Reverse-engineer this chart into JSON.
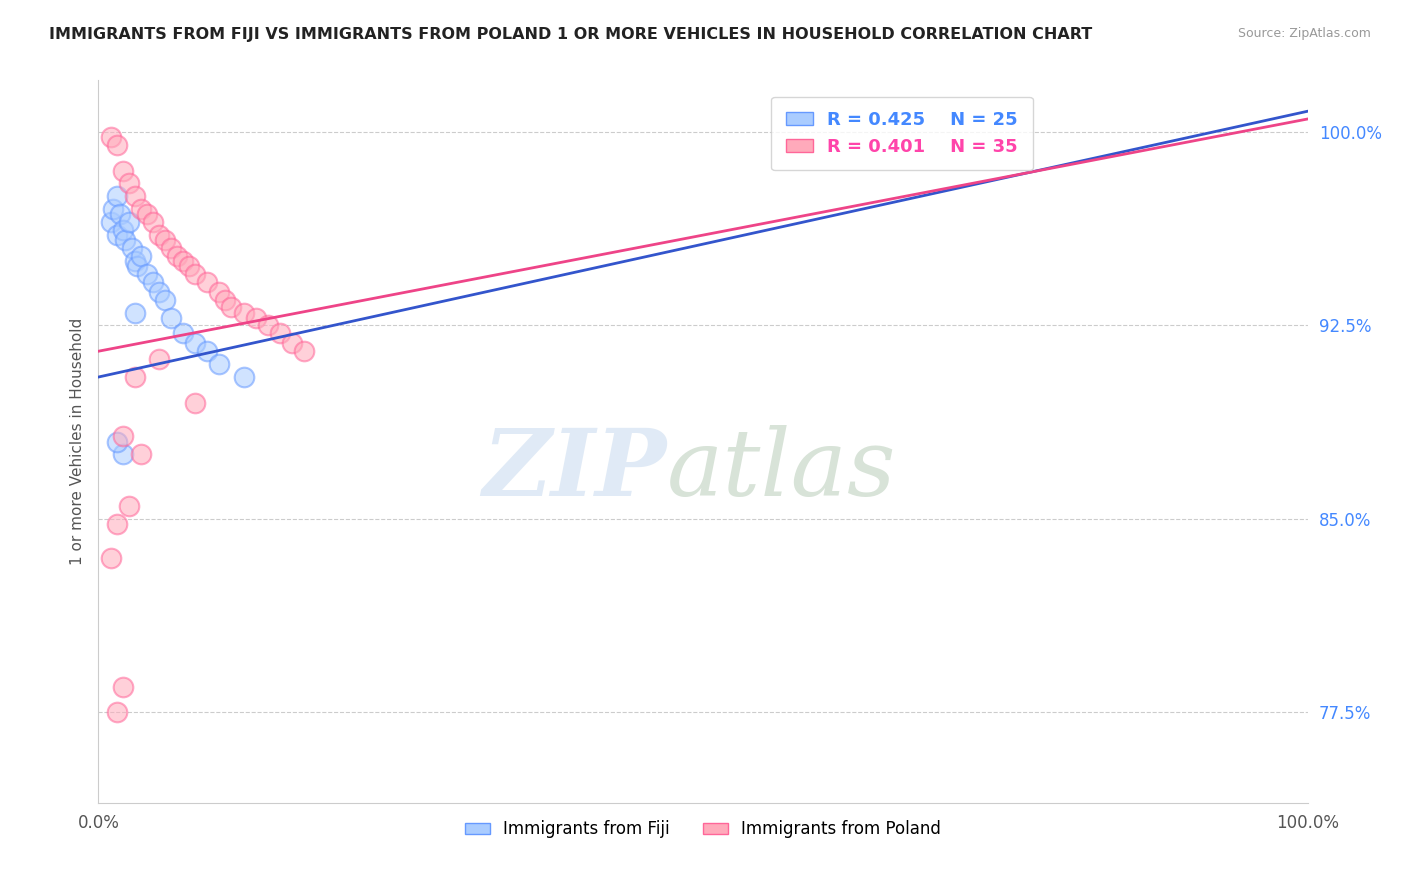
{
  "title": "IMMIGRANTS FROM FIJI VS IMMIGRANTS FROM POLAND 1 OR MORE VEHICLES IN HOUSEHOLD CORRELATION CHART",
  "source": "Source: ZipAtlas.com",
  "ylabel": "1 or more Vehicles in Household",
  "xlim": [
    0,
    100
  ],
  "ylim": [
    74,
    102
  ],
  "yticks": [
    77.5,
    85.0,
    92.5,
    100.0
  ],
  "xticks": [
    0,
    100
  ],
  "xtick_labels": [
    "0.0%",
    "100.0%"
  ],
  "ytick_labels": [
    "77.5%",
    "85.0%",
    "92.5%",
    "100.0%"
  ],
  "fiji_color": "#6699ff",
  "poland_color": "#ff6699",
  "fiji_R": 0.425,
  "fiji_N": 25,
  "poland_R": 0.401,
  "poland_N": 35,
  "fiji_points": [
    [
      1.0,
      96.5
    ],
    [
      1.2,
      97.0
    ],
    [
      1.5,
      97.5
    ],
    [
      1.5,
      96.0
    ],
    [
      1.8,
      96.8
    ],
    [
      2.0,
      96.2
    ],
    [
      2.2,
      95.8
    ],
    [
      2.5,
      96.5
    ],
    [
      2.8,
      95.5
    ],
    [
      3.0,
      95.0
    ],
    [
      3.2,
      94.8
    ],
    [
      3.5,
      95.2
    ],
    [
      4.0,
      94.5
    ],
    [
      4.5,
      94.2
    ],
    [
      5.0,
      93.8
    ],
    [
      5.5,
      93.5
    ],
    [
      6.0,
      92.8
    ],
    [
      7.0,
      92.2
    ],
    [
      8.0,
      91.8
    ],
    [
      9.0,
      91.5
    ],
    [
      10.0,
      91.0
    ],
    [
      12.0,
      90.5
    ],
    [
      3.0,
      93.0
    ],
    [
      2.0,
      87.5
    ],
    [
      1.5,
      88.0
    ]
  ],
  "poland_points": [
    [
      1.0,
      99.8
    ],
    [
      1.5,
      99.5
    ],
    [
      2.0,
      98.5
    ],
    [
      2.5,
      98.0
    ],
    [
      3.0,
      97.5
    ],
    [
      3.5,
      97.0
    ],
    [
      4.0,
      96.8
    ],
    [
      4.5,
      96.5
    ],
    [
      5.0,
      96.0
    ],
    [
      5.5,
      95.8
    ],
    [
      6.0,
      95.5
    ],
    [
      6.5,
      95.2
    ],
    [
      7.0,
      95.0
    ],
    [
      7.5,
      94.8
    ],
    [
      8.0,
      94.5
    ],
    [
      9.0,
      94.2
    ],
    [
      10.0,
      93.8
    ],
    [
      10.5,
      93.5
    ],
    [
      11.0,
      93.2
    ],
    [
      12.0,
      93.0
    ],
    [
      13.0,
      92.8
    ],
    [
      14.0,
      92.5
    ],
    [
      15.0,
      92.2
    ],
    [
      16.0,
      91.8
    ],
    [
      17.0,
      91.5
    ],
    [
      3.0,
      90.5
    ],
    [
      5.0,
      91.2
    ],
    [
      8.0,
      89.5
    ],
    [
      2.0,
      88.2
    ],
    [
      3.5,
      87.5
    ],
    [
      1.5,
      84.8
    ],
    [
      2.5,
      85.5
    ],
    [
      1.0,
      83.5
    ],
    [
      1.5,
      77.5
    ],
    [
      2.0,
      78.5
    ]
  ],
  "fiji_trend_x": [
    0,
    100
  ],
  "fiji_trend_y": [
    90.5,
    100.8
  ],
  "poland_trend_x": [
    0,
    100
  ],
  "poland_trend_y": [
    91.5,
    100.5
  ],
  "background_color": "#ffffff",
  "grid_color": "#cccccc"
}
